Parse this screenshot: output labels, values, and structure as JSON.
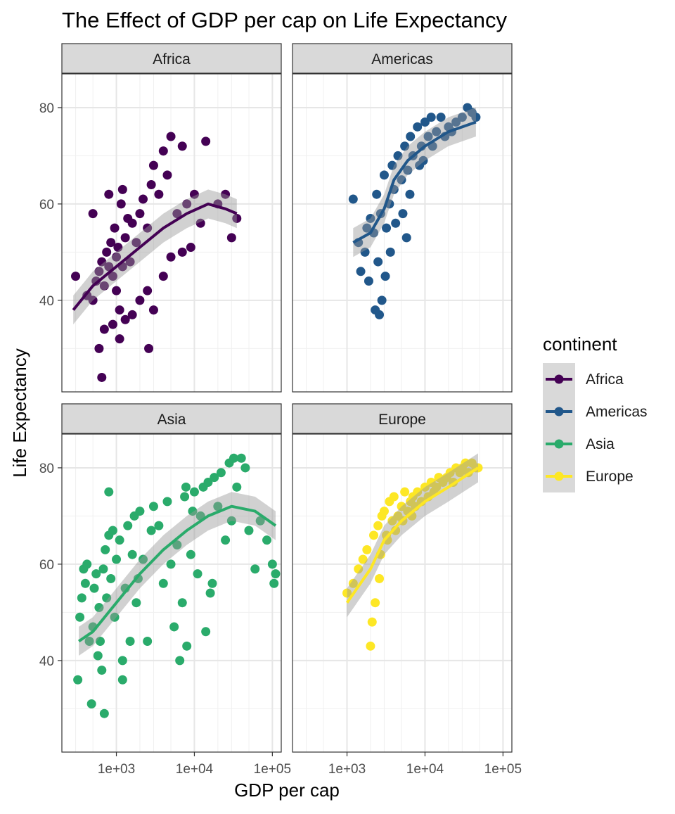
{
  "chart_data": {
    "type": "scatter",
    "title": "The Effect of GDP per cap on Life Expectancy",
    "xlabel": "GDP per cap",
    "ylabel": "Life Expectancy",
    "x_scale": "log10",
    "xlim": [
      200,
      130000
    ],
    "ylim": [
      21,
      87
    ],
    "x_ticks": [
      1000,
      10000,
      100000
    ],
    "x_tick_labels": [
      "1e+03",
      "1e+04",
      "1e+05"
    ],
    "y_ticks": [
      40,
      60,
      80
    ],
    "y_tick_labels": [
      "40",
      "60",
      "80"
    ],
    "legend": {
      "title": "continent",
      "position": "right"
    },
    "facets": [
      {
        "name": "Africa",
        "color": "#440154",
        "points": [
          [
            300,
            45
          ],
          [
            420,
            41
          ],
          [
            500,
            40
          ],
          [
            550,
            44
          ],
          [
            600,
            46
          ],
          [
            650,
            48
          ],
          [
            700,
            43
          ],
          [
            750,
            50
          ],
          [
            800,
            47
          ],
          [
            850,
            52
          ],
          [
            900,
            45
          ],
          [
            950,
            55
          ],
          [
            1000,
            49
          ],
          [
            1050,
            51
          ],
          [
            1100,
            38
          ],
          [
            1150,
            60
          ],
          [
            1200,
            47
          ],
          [
            1300,
            53
          ],
          [
            1400,
            57
          ],
          [
            1500,
            48
          ],
          [
            1600,
            56
          ],
          [
            1800,
            52
          ],
          [
            2000,
            58
          ],
          [
            2200,
            61
          ],
          [
            2500,
            55
          ],
          [
            2800,
            64
          ],
          [
            3000,
            68
          ],
          [
            3500,
            62
          ],
          [
            4000,
            71
          ],
          [
            4500,
            66
          ],
          [
            5000,
            74
          ],
          [
            6000,
            58
          ],
          [
            7000,
            72
          ],
          [
            8000,
            60
          ],
          [
            10000,
            62
          ],
          [
            12000,
            56
          ],
          [
            14000,
            73
          ],
          [
            20000,
            60
          ],
          [
            25000,
            62
          ],
          [
            900,
            35
          ],
          [
            700,
            34
          ],
          [
            600,
            30
          ],
          [
            1100,
            32
          ],
          [
            1300,
            36
          ],
          [
            1600,
            37
          ],
          [
            2000,
            40
          ],
          [
            2500,
            42
          ],
          [
            3000,
            38
          ],
          [
            4000,
            45
          ],
          [
            5000,
            49
          ],
          [
            7000,
            50
          ],
          [
            9000,
            51
          ],
          [
            30000,
            53
          ],
          [
            35000,
            57
          ],
          [
            650,
            24
          ],
          [
            1200,
            63
          ],
          [
            500,
            58
          ],
          [
            800,
            62
          ],
          [
            2600,
            30
          ],
          [
            1000,
            42
          ]
        ],
        "trend": [
          [
            280,
            38
          ],
          [
            500,
            43
          ],
          [
            1000,
            47
          ],
          [
            2000,
            51
          ],
          [
            4000,
            55
          ],
          [
            8000,
            58
          ],
          [
            15000,
            60
          ],
          [
            25000,
            59
          ],
          [
            35000,
            58
          ]
        ]
      },
      {
        "name": "Americas",
        "color": "#21578A",
        "points": [
          [
            1200,
            61
          ],
          [
            1400,
            52
          ],
          [
            1500,
            46
          ],
          [
            1700,
            50
          ],
          [
            1900,
            44
          ],
          [
            2000,
            57
          ],
          [
            2200,
            54
          ],
          [
            2400,
            62
          ],
          [
            2500,
            48
          ],
          [
            2700,
            58
          ],
          [
            2800,
            40
          ],
          [
            3000,
            66
          ],
          [
            3200,
            55
          ],
          [
            3500,
            60
          ],
          [
            3800,
            68
          ],
          [
            4000,
            63
          ],
          [
            4500,
            70
          ],
          [
            5000,
            65
          ],
          [
            5500,
            72
          ],
          [
            6000,
            67
          ],
          [
            6500,
            74
          ],
          [
            7000,
            70
          ],
          [
            8000,
            76
          ],
          [
            9000,
            72
          ],
          [
            10000,
            77
          ],
          [
            11000,
            74
          ],
          [
            12000,
            78
          ],
          [
            14000,
            75
          ],
          [
            16000,
            78
          ],
          [
            18000,
            74
          ],
          [
            20000,
            76
          ],
          [
            25000,
            77
          ],
          [
            30000,
            78
          ],
          [
            35000,
            80
          ],
          [
            40000,
            79
          ],
          [
            45000,
            78
          ],
          [
            2600,
            37
          ],
          [
            3100,
            45
          ],
          [
            3600,
            50
          ],
          [
            4200,
            56
          ],
          [
            5200,
            58
          ],
          [
            6400,
            62
          ],
          [
            5800,
            53
          ],
          [
            2300,
            38
          ],
          [
            1800,
            55
          ],
          [
            8500,
            68
          ],
          [
            9500,
            69
          ],
          [
            12500,
            72
          ],
          [
            22000,
            75
          ]
        ],
        "trend": [
          [
            1200,
            52
          ],
          [
            2000,
            54
          ],
          [
            3000,
            59
          ],
          [
            4000,
            65
          ],
          [
            6000,
            69
          ],
          [
            10000,
            72
          ],
          [
            20000,
            75
          ],
          [
            45000,
            77
          ]
        ]
      },
      {
        "name": "Asia",
        "color": "#2AAB6B",
        "points": [
          [
            320,
            36
          ],
          [
            340,
            49
          ],
          [
            360,
            53
          ],
          [
            380,
            59
          ],
          [
            400,
            56
          ],
          [
            420,
            60
          ],
          [
            450,
            44
          ],
          [
            480,
            31
          ],
          [
            500,
            47
          ],
          [
            520,
            55
          ],
          [
            550,
            58
          ],
          [
            580,
            41
          ],
          [
            600,
            51
          ],
          [
            620,
            44
          ],
          [
            650,
            38
          ],
          [
            680,
            59
          ],
          [
            700,
            29
          ],
          [
            720,
            63
          ],
          [
            750,
            53
          ],
          [
            800,
            66
          ],
          [
            850,
            57
          ],
          [
            900,
            67
          ],
          [
            950,
            49
          ],
          [
            1000,
            61
          ],
          [
            1100,
            65
          ],
          [
            1200,
            40
          ],
          [
            1300,
            55
          ],
          [
            1400,
            68
          ],
          [
            1500,
            44
          ],
          [
            1600,
            62
          ],
          [
            1700,
            70
          ],
          [
            1800,
            52
          ],
          [
            1900,
            57
          ],
          [
            2000,
            71
          ],
          [
            2200,
            61
          ],
          [
            2500,
            44
          ],
          [
            2800,
            67
          ],
          [
            3000,
            72
          ],
          [
            3500,
            68
          ],
          [
            4000,
            56
          ],
          [
            4500,
            73
          ],
          [
            5000,
            60
          ],
          [
            5500,
            47
          ],
          [
            6000,
            64
          ],
          [
            6500,
            40
          ],
          [
            7000,
            52
          ],
          [
            7500,
            74
          ],
          [
            8000,
            43
          ],
          [
            9000,
            62
          ],
          [
            10000,
            75
          ],
          [
            11000,
            58
          ],
          [
            12000,
            70
          ],
          [
            13000,
            76
          ],
          [
            14000,
            46
          ],
          [
            15000,
            77
          ],
          [
            17000,
            56
          ],
          [
            18000,
            78
          ],
          [
            20000,
            72
          ],
          [
            22000,
            79
          ],
          [
            25000,
            65
          ],
          [
            28000,
            81
          ],
          [
            30000,
            69
          ],
          [
            32000,
            82
          ],
          [
            35000,
            76
          ],
          [
            40000,
            82
          ],
          [
            45000,
            80
          ],
          [
            50000,
            67
          ],
          [
            60000,
            59
          ],
          [
            70000,
            69
          ],
          [
            85000,
            65
          ],
          [
            100000,
            60
          ],
          [
            105000,
            56
          ],
          [
            110000,
            58
          ],
          [
            7800,
            76
          ],
          [
            9500,
            71
          ],
          [
            16000,
            54
          ],
          [
            800,
            75
          ],
          [
            1200,
            36
          ]
        ],
        "trend": [
          [
            330,
            44
          ],
          [
            500,
            46
          ],
          [
            1000,
            52
          ],
          [
            2000,
            58
          ],
          [
            4000,
            63
          ],
          [
            8000,
            67
          ],
          [
            15000,
            70
          ],
          [
            30000,
            72
          ],
          [
            60000,
            71
          ],
          [
            110000,
            68
          ]
        ]
      },
      {
        "name": "Europe",
        "color": "#FDE725",
        "points": [
          [
            1000,
            54
          ],
          [
            1200,
            56
          ],
          [
            1400,
            59
          ],
          [
            1600,
            61
          ],
          [
            1800,
            63
          ],
          [
            2000,
            43
          ],
          [
            2100,
            48
          ],
          [
            2200,
            66
          ],
          [
            2300,
            52
          ],
          [
            2500,
            68
          ],
          [
            2700,
            62
          ],
          [
            2800,
            70
          ],
          [
            3000,
            71
          ],
          [
            3300,
            65
          ],
          [
            3500,
            73
          ],
          [
            3800,
            69
          ],
          [
            4000,
            74
          ],
          [
            4500,
            70
          ],
          [
            5000,
            72
          ],
          [
            5500,
            75
          ],
          [
            6000,
            71
          ],
          [
            6500,
            73
          ],
          [
            7000,
            74
          ],
          [
            7500,
            72
          ],
          [
            8000,
            75
          ],
          [
            9000,
            73
          ],
          [
            10000,
            76
          ],
          [
            11000,
            74
          ],
          [
            12000,
            77
          ],
          [
            13000,
            75
          ],
          [
            14000,
            76
          ],
          [
            15000,
            78
          ],
          [
            17000,
            77
          ],
          [
            19000,
            78
          ],
          [
            21000,
            79
          ],
          [
            23000,
            77
          ],
          [
            25000,
            80
          ],
          [
            28000,
            79
          ],
          [
            30000,
            80
          ],
          [
            33000,
            81
          ],
          [
            36000,
            79
          ],
          [
            40000,
            81
          ],
          [
            45000,
            80
          ],
          [
            48000,
            80
          ],
          [
            2600,
            57
          ],
          [
            3200,
            66
          ],
          [
            4200,
            67
          ],
          [
            5200,
            69
          ],
          [
            6800,
            70
          ]
        ],
        "trend": [
          [
            1000,
            52
          ],
          [
            2000,
            59
          ],
          [
            3000,
            65
          ],
          [
            5000,
            69
          ],
          [
            10000,
            73
          ],
          [
            20000,
            76
          ],
          [
            48000,
            80
          ]
        ]
      }
    ]
  }
}
